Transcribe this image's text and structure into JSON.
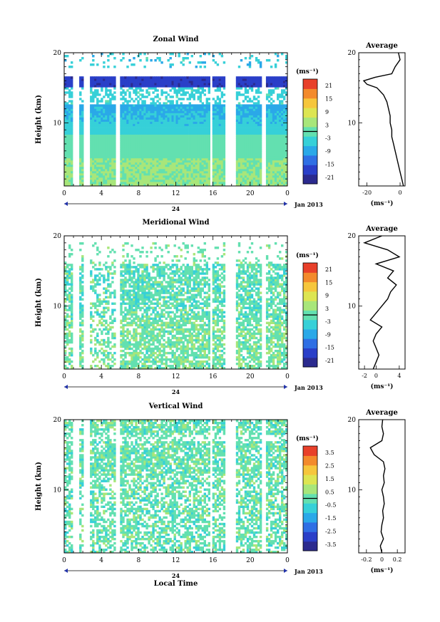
{
  "figure": {
    "xlabel": "Local Time",
    "day_label": "24",
    "month_label": "Jan 2013",
    "x_ticks": [
      "0",
      "4",
      "8",
      "12",
      "16",
      "20",
      "0"
    ],
    "colors": {
      "colormap": [
        "#2b2a8e",
        "#2a3fc8",
        "#2f6fe4",
        "#2aa8e8",
        "#36d0d8",
        "#63e0b0",
        "#a8e67a",
        "#dde552",
        "#f6c63c",
        "#f38a2c",
        "#e8402a"
      ],
      "missing": "#ffffff"
    }
  },
  "chart_data": [
    {
      "type": "heatmap",
      "title": "Zonal Wind",
      "ylabel": "Height (km)",
      "xlim": [
        0,
        24
      ],
      "ylim": [
        1,
        20
      ],
      "y_ticks": [
        "10",
        "20"
      ],
      "colorbar": {
        "label": "(ms⁻¹)",
        "ticks": [
          "21",
          "15",
          "9",
          "3",
          "-3",
          "-9",
          "-15",
          "-21"
        ],
        "range": [
          -24,
          24
        ]
      },
      "profile": {
        "title": "Average",
        "xlabel": "(ms⁻¹)",
        "x_ticks": [
          "-20",
          "0"
        ],
        "xlim": [
          -25,
          3
        ],
        "heights": [
          1,
          2,
          3,
          4,
          5,
          6,
          7,
          8,
          9,
          10,
          11,
          12,
          13,
          14,
          15,
          15.5,
          16,
          16.5,
          17,
          18,
          19,
          20
        ],
        "values": [
          2,
          1,
          0,
          -1,
          -2,
          -3,
          -4,
          -5,
          -5,
          -6,
          -6,
          -7,
          -8,
          -10,
          -14,
          -20,
          -22,
          -15,
          -5,
          -3,
          0,
          -1
        ]
      }
    },
    {
      "type": "heatmap",
      "title": "Meridional Wind",
      "ylabel": "Height (km)",
      "xlim": [
        0,
        24
      ],
      "ylim": [
        1,
        20
      ],
      "y_ticks": [
        "10",
        "20"
      ],
      "colorbar": {
        "label": "(ms⁻¹)",
        "ticks": [
          "21",
          "15",
          "9",
          "3",
          "-3",
          "-9",
          "-15",
          "-21"
        ],
        "range": [
          -24,
          24
        ]
      },
      "profile": {
        "title": "Average",
        "xlabel": "(ms⁻¹)",
        "x_ticks": [
          "-2",
          "0",
          "4"
        ],
        "xlim": [
          -3,
          5
        ],
        "heights": [
          1,
          2,
          3,
          4,
          5,
          6,
          7,
          8,
          9,
          10,
          11,
          12,
          13,
          14,
          15,
          16,
          17,
          18,
          19,
          20
        ],
        "values": [
          -0.5,
          0,
          0.5,
          0,
          -0.5,
          0,
          1,
          -1,
          0,
          1,
          2,
          2.5,
          3.5,
          2,
          3,
          0,
          4,
          2,
          -2,
          1
        ]
      }
    },
    {
      "type": "heatmap",
      "title": "Vertical Wind",
      "ylabel": "Height (km)",
      "xlim": [
        0,
        24
      ],
      "ylim": [
        1,
        20
      ],
      "y_ticks": [
        "10",
        "20"
      ],
      "colorbar": {
        "label": "(ms⁻¹)",
        "ticks": [
          "3.5",
          "2.5",
          "1.5",
          "0.5",
          "-0.5",
          "-1.5",
          "-2.5",
          "-3.5"
        ],
        "range": [
          -4,
          4
        ]
      },
      "profile": {
        "title": "Average",
        "xlabel": "(ms⁻¹)",
        "x_ticks": [
          "-0.2",
          "0",
          "0.2"
        ],
        "xlim": [
          -0.3,
          0.3
        ],
        "heights": [
          1,
          2,
          3,
          4,
          5,
          6,
          7,
          8,
          9,
          10,
          11,
          12,
          13,
          14,
          15,
          16,
          17,
          18,
          19,
          20
        ],
        "values": [
          0,
          -0.02,
          0.02,
          -0.01,
          0.0,
          0.02,
          0.01,
          0.03,
          0.02,
          0.0,
          0.03,
          0.02,
          0.04,
          0.02,
          -0.1,
          -0.15,
          0.0,
          0.02,
          0.0,
          0.01
        ]
      }
    }
  ]
}
